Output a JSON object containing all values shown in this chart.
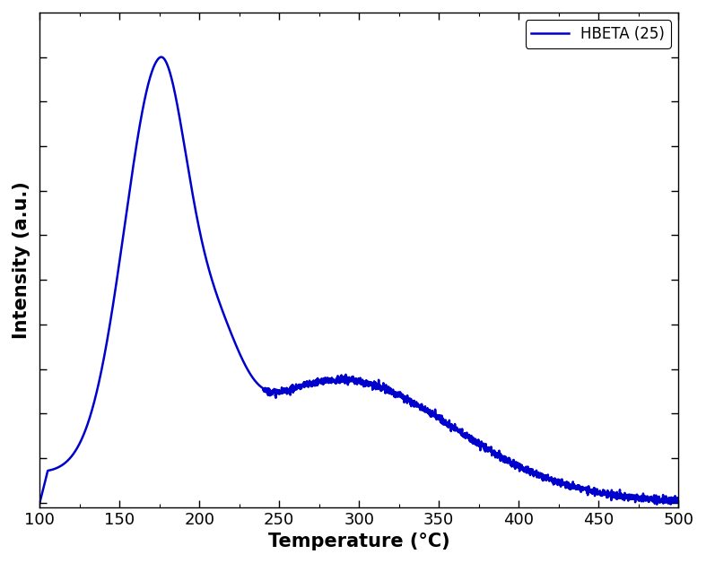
{
  "title": "",
  "xlabel": "Temperature (°C)",
  "ylabel": "Intensity (a.u.)",
  "legend_label": "HBETA (25)",
  "line_color": "#0000CC",
  "line_width": 1.8,
  "xlim": [
    100,
    500
  ],
  "xticks": [
    100,
    150,
    200,
    250,
    300,
    350,
    400,
    450,
    500
  ],
  "background_color": "#ffffff",
  "xlabel_fontsize": 15,
  "ylabel_fontsize": 15,
  "tick_fontsize": 13,
  "legend_fontsize": 12,
  "figsize": [
    7.87,
    6.28
  ],
  "dpi": 100
}
